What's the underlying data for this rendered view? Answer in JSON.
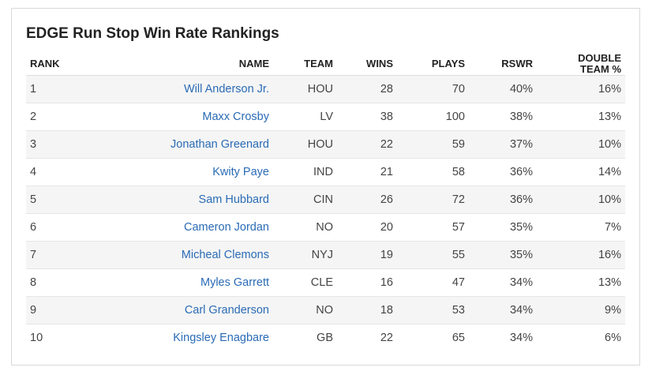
{
  "title": "EDGE Run Stop Win Rate Rankings",
  "colors": {
    "link": "#2a6bb5",
    "stripe": "#f5f5f5",
    "border": "#d9d9d9"
  },
  "columns": {
    "rank": "RANK",
    "name": "NAME",
    "team": "TEAM",
    "wins": "WINS",
    "plays": "PLAYS",
    "rswr": "RSWR",
    "double_team_line1": "DOUBLE",
    "double_team_line2": "TEAM %"
  },
  "rows": [
    {
      "rank": "1",
      "name": "Will Anderson Jr.",
      "team": "HOU",
      "wins": "28",
      "plays": "70",
      "rswr": "40%",
      "double_team": "16%"
    },
    {
      "rank": "2",
      "name": "Maxx Crosby",
      "team": "LV",
      "wins": "38",
      "plays": "100",
      "rswr": "38%",
      "double_team": "13%"
    },
    {
      "rank": "3",
      "name": "Jonathan Greenard",
      "team": "HOU",
      "wins": "22",
      "plays": "59",
      "rswr": "37%",
      "double_team": "10%"
    },
    {
      "rank": "4",
      "name": "Kwity Paye",
      "team": "IND",
      "wins": "21",
      "plays": "58",
      "rswr": "36%",
      "double_team": "14%"
    },
    {
      "rank": "5",
      "name": "Sam Hubbard",
      "team": "CIN",
      "wins": "26",
      "plays": "72",
      "rswr": "36%",
      "double_team": "10%"
    },
    {
      "rank": "6",
      "name": "Cameron Jordan",
      "team": "NO",
      "wins": "20",
      "plays": "57",
      "rswr": "35%",
      "double_team": "7%"
    },
    {
      "rank": "7",
      "name": "Micheal Clemons",
      "team": "NYJ",
      "wins": "19",
      "plays": "55",
      "rswr": "35%",
      "double_team": "16%"
    },
    {
      "rank": "8",
      "name": "Myles Garrett",
      "team": "CLE",
      "wins": "16",
      "plays": "47",
      "rswr": "34%",
      "double_team": "13%"
    },
    {
      "rank": "9",
      "name": "Carl Granderson",
      "team": "NO",
      "wins": "18",
      "plays": "53",
      "rswr": "34%",
      "double_team": "9%"
    },
    {
      "rank": "10",
      "name": "Kingsley Enagbare",
      "team": "GB",
      "wins": "22",
      "plays": "65",
      "rswr": "34%",
      "double_team": "6%"
    }
  ]
}
